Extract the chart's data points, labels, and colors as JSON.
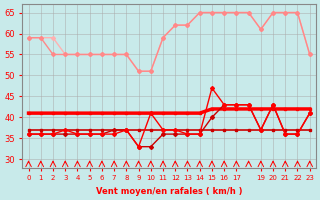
{
  "x": [
    0,
    1,
    2,
    3,
    4,
    5,
    6,
    7,
    8,
    9,
    10,
    11,
    12,
    13,
    14,
    15,
    16,
    17,
    18,
    19,
    20,
    21,
    22,
    23
  ],
  "line1_pink_light": [
    59,
    59,
    59,
    55,
    55,
    55,
    55,
    55,
    55,
    51,
    51,
    59,
    62,
    62,
    65,
    65,
    65,
    65,
    65,
    61,
    65,
    65,
    65,
    55
  ],
  "line2_pink": [
    59,
    59,
    55,
    55,
    55,
    55,
    55,
    55,
    55,
    51,
    51,
    59,
    62,
    62,
    65,
    65,
    65,
    65,
    65,
    61,
    65,
    65,
    65,
    55
  ],
  "line3_red_thick": [
    41,
    41,
    41,
    41,
    41,
    41,
    41,
    41,
    41,
    41,
    41,
    41,
    41,
    41,
    41,
    42,
    42,
    42,
    42,
    42,
    42,
    42,
    42,
    42
  ],
  "line4_dark_flat": [
    37,
    37,
    37,
    37,
    37,
    37,
    37,
    37,
    37,
    37,
    37,
    37,
    37,
    37,
    37,
    37,
    37,
    37,
    37,
    37,
    37,
    37,
    37,
    37
  ],
  "line5_dark_var": [
    36,
    36,
    36,
    36,
    36,
    36,
    36,
    37,
    37,
    33,
    33,
    36,
    36,
    36,
    36,
    40,
    43,
    43,
    43,
    37,
    43,
    36,
    36,
    41
  ],
  "line6_red_var": [
    36,
    36,
    36,
    37,
    36,
    36,
    36,
    36,
    37,
    33,
    41,
    37,
    37,
    36,
    36,
    47,
    43,
    43,
    43,
    37,
    43,
    36,
    36,
    41
  ],
  "xtick_positions": [
    0,
    1,
    2,
    3,
    4,
    5,
    6,
    7,
    8,
    9,
    10,
    11,
    12,
    13,
    14,
    15,
    16,
    17,
    19,
    20,
    21,
    22,
    23
  ],
  "xlabels": [
    "0",
    "1",
    "2",
    "3",
    "4",
    "5",
    "6",
    "7",
    "8",
    "9",
    "10",
    "11",
    "12",
    "13",
    "14",
    "15",
    "16",
    "17",
    "19",
    "20",
    "21",
    "22",
    "23"
  ],
  "ylabel": "Vent moyen/en rafales ( km/h )",
  "ylim": [
    28,
    67
  ],
  "yticks": [
    30,
    35,
    40,
    45,
    50,
    55,
    60,
    65
  ],
  "bg_color": "#c8eaea",
  "grid_color": "#aaaaaa",
  "color_pink_light": "#ffb0b0",
  "color_pink": "#ff8888",
  "color_red_thick": "#ff0000",
  "color_dark": "#cc0000"
}
